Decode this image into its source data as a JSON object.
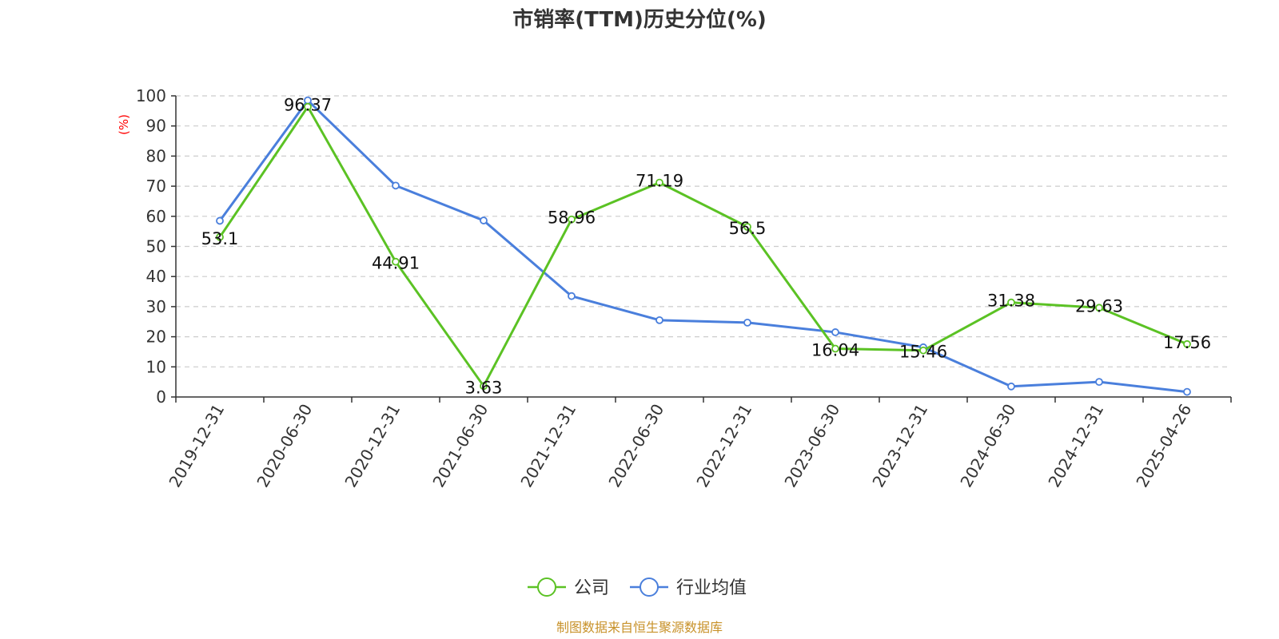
{
  "chart_data": {
    "type": "line",
    "title": "市销率(TTM)历史分位(%)",
    "ylabel": "(%)",
    "ylim": [
      0,
      100
    ],
    "yticks": [
      0,
      10,
      20,
      30,
      40,
      50,
      60,
      70,
      80,
      90,
      100
    ],
    "grid": "horizontal dashed",
    "legend_position": "bottom-center",
    "categories": [
      "2019-12-31",
      "2020-06-30",
      "2020-12-31",
      "2021-06-30",
      "2021-12-31",
      "2022-06-30",
      "2022-12-31",
      "2023-06-30",
      "2023-12-31",
      "2024-06-30",
      "2024-12-31",
      "2025-04-26"
    ],
    "series": [
      {
        "name": "公司",
        "color": "#5bc224",
        "values": [
          53.1,
          96.37,
          44.91,
          3.63,
          58.96,
          71.19,
          56.5,
          16.04,
          15.46,
          31.38,
          29.63,
          17.56
        ],
        "labels": [
          "53.1",
          "96.37",
          "44.91",
          "3.63",
          "58.96",
          "71.19",
          "56.5",
          "16.04",
          "15.46",
          "31.38",
          "29.63",
          "17.56"
        ]
      },
      {
        "name": "行业均值",
        "color": "#4a7fdc",
        "values": [
          58.5,
          98.5,
          70.2,
          58.6,
          33.5,
          25.5,
          24.7,
          21.5,
          16.5,
          3.5,
          5.0,
          1.7
        ]
      }
    ],
    "source": "制图数据来自恒生聚源数据库"
  }
}
